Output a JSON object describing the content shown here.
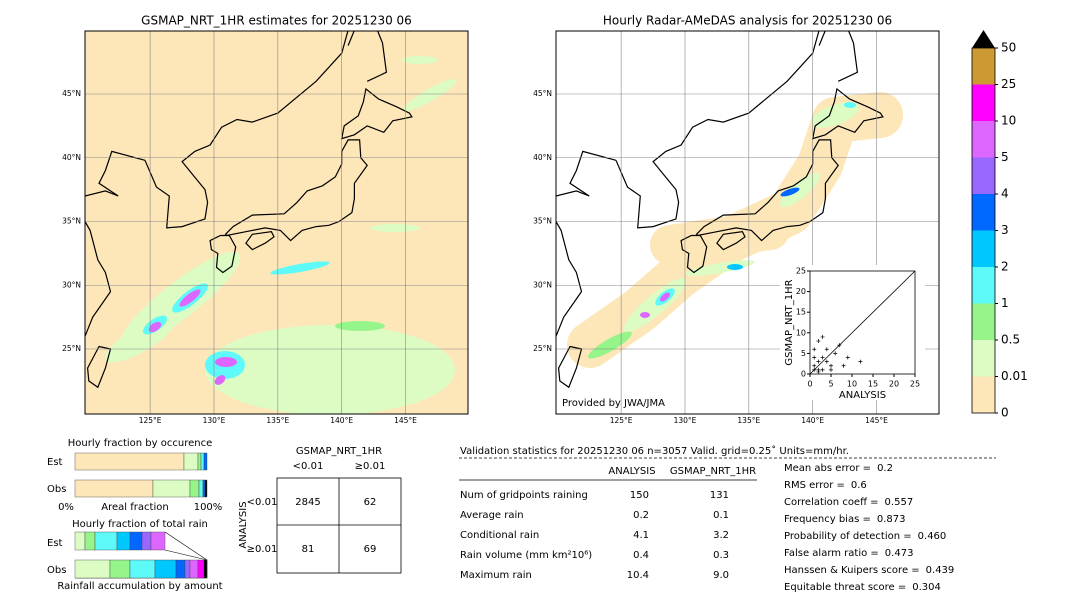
{
  "maps": [
    {
      "title": "GSMAP_NRT_1HR estimates for 20251230 06",
      "lat_labels": [
        "45°N",
        "40°N",
        "35°N",
        "30°N",
        "25°N"
      ],
      "lon_labels": [
        "125°E",
        "130°E",
        "135°E",
        "140°E",
        "145°E"
      ]
    },
    {
      "title": "Hourly Radar-AMeDAS analysis for 20251230 06",
      "lat_labels": [
        "45°N",
        "40°N",
        "35°N",
        "30°N",
        "25°N"
      ],
      "lon_labels": [
        "125°E",
        "130°E",
        "135°E",
        "140°E",
        "145°E"
      ],
      "credit": "Provided by JWA/JMA"
    }
  ],
  "colorbar": {
    "labels": [
      "0",
      "0.01",
      "0.5",
      "1",
      "2",
      "3",
      "4",
      "5",
      "10",
      "25",
      "50"
    ]
  },
  "inset": {
    "xlabel": "ANALYSIS",
    "ylabel": "GSMAP_NRT_1HR",
    "ticks": [
      "0",
      "5",
      "10",
      "15",
      "20",
      "25"
    ]
  },
  "occurrence": {
    "title": "Hourly fraction by occurence",
    "rows": [
      "Est",
      "Obs"
    ],
    "axis_left": "0%",
    "axis_label": "Areal fraction",
    "axis_right": "100%"
  },
  "total_rain": {
    "title": "Hourly fraction of total rain",
    "rows": [
      "Est",
      "Obs"
    ],
    "footer": "Rainfall accumulation by amount"
  },
  "contingency": {
    "title": "GSMAP_NRT_1HR",
    "columns": [
      "<0.01",
      "≥0.01"
    ],
    "row_title": "ANALYSIS",
    "rows": [
      "<0.01",
      "≥0.01"
    ],
    "cells": [
      [
        "2845",
        "62"
      ],
      [
        "81",
        "69"
      ]
    ]
  },
  "validation": {
    "header": "Validation statistics for 20251230 06  n=3057 Valid. grid=0.25˚ Units=mm/hr.",
    "columns": [
      "ANALYSIS",
      "GSMAP_NRT_1HR"
    ],
    "rows": [
      {
        "label": "Num of gridpoints raining",
        "values": [
          "150",
          "131"
        ]
      },
      {
        "label": "Average rain",
        "values": [
          "0.2",
          "0.1"
        ]
      },
      {
        "label": "Conditional rain",
        "values": [
          "4.1",
          "3.2"
        ]
      },
      {
        "label": "Rain volume (mm km²10⁶)",
        "values": [
          "0.4",
          "0.3"
        ]
      },
      {
        "label": "Maximum rain",
        "values": [
          "10.4",
          "9.0"
        ]
      }
    ],
    "scores": [
      {
        "label": "Mean abs error =",
        "value": "0.2"
      },
      {
        "label": "RMS error =",
        "value": "0.6"
      },
      {
        "label": "Correlation coeff =",
        "value": "0.557"
      },
      {
        "label": "Frequency bias =",
        "value": "0.873"
      },
      {
        "label": "Probability of detection =",
        "value": "0.460"
      },
      {
        "label": "False alarm ratio =",
        "value": "0.473"
      },
      {
        "label": "Hanssen & Kuipers score =",
        "value": "0.439"
      },
      {
        "label": "Equitable threat score =",
        "value": "0.304"
      }
    ]
  }
}
